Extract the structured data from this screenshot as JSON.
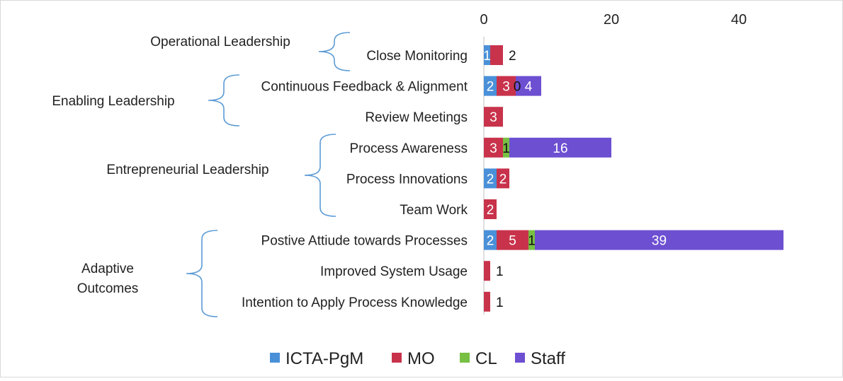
{
  "chart_data": {
    "type": "bar",
    "orientation": "horizontal",
    "stacked": true,
    "title": "",
    "xlabel": "",
    "ylabel": "",
    "xlim": [
      0,
      47
    ],
    "x_ticks": [
      0,
      20,
      40
    ],
    "x_axis_position": "top",
    "grid": false,
    "legend_position": "bottom",
    "categories": [
      "Close Monitoring",
      "Continuous Feedback & Alignment",
      "Review Meetings",
      "Process Awareness",
      "Process Innovations",
      "Team Work",
      "Postive Attiude towards Processes",
      "Improved System Usage",
      "Intention to Apply Process Knowledge"
    ],
    "groups": [
      {
        "label": "Operational Leadership",
        "categories": [
          "Close Monitoring"
        ]
      },
      {
        "label": "Enabling Leadership",
        "categories": [
          "Continuous Feedback & Alignment",
          "Review Meetings"
        ]
      },
      {
        "label": "Entrepreneurial Leadership",
        "categories": [
          "Process Awareness",
          "Process Innovations",
          "Team Work"
        ]
      },
      {
        "label": "Adaptive Outcomes",
        "categories": [
          "Postive Attiude towards Processes",
          "Improved System Usage",
          "Intention to Apply Process Knowledge"
        ]
      }
    ],
    "series": [
      {
        "name": "ICTA-PgM",
        "color": "#4a90d9",
        "values": [
          1,
          2,
          0,
          0,
          2,
          0,
          2,
          0,
          0
        ]
      },
      {
        "name": "MO",
        "color": "#c8334b",
        "values": [
          2,
          3,
          3,
          3,
          2,
          2,
          5,
          1,
          1
        ]
      },
      {
        "name": "CL",
        "color": "#77c043",
        "values": [
          0,
          0,
          0,
          1,
          0,
          0,
          1,
          0,
          0
        ]
      },
      {
        "name": "Staff",
        "color": "#6d4fd1",
        "values": [
          0,
          4,
          0,
          16,
          0,
          0,
          39,
          0,
          0
        ]
      }
    ],
    "data_labels": [
      {
        "category": "Close Monitoring",
        "labels": [
          "1",
          "2",
          "",
          ""
        ]
      },
      {
        "category": "Continuous Feedback & Alignment",
        "labels": [
          "2",
          "3",
          "0",
          "4"
        ]
      },
      {
        "category": "Review Meetings",
        "labels": [
          "",
          "3",
          "",
          ""
        ]
      },
      {
        "category": "Process Awareness",
        "labels": [
          "",
          "3",
          "1",
          "16"
        ]
      },
      {
        "category": "Process Innovations",
        "labels": [
          "2",
          "2",
          "",
          ""
        ]
      },
      {
        "category": "Team Work",
        "labels": [
          "",
          "2",
          "",
          ""
        ]
      },
      {
        "category": "Postive Attiude towards Processes",
        "labels": [
          "2",
          "5",
          "1",
          "39"
        ]
      },
      {
        "category": "Improved System Usage",
        "labels": [
          "",
          "1",
          "",
          ""
        ]
      },
      {
        "category": "Intention to Apply Process Knowledge",
        "labels": [
          "",
          "1",
          "",
          ""
        ]
      }
    ]
  }
}
